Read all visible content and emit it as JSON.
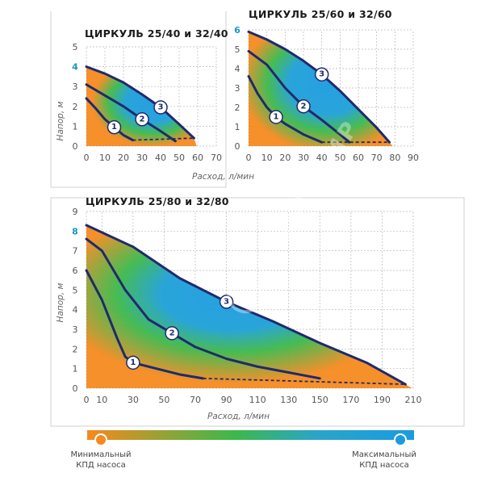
{
  "chart_data": [
    {
      "type": "line",
      "title": "ЦИРКУЛЬ 25/40 и 32/40",
      "xlabel": "Расход, л/мин",
      "ylabel": "Напор, м",
      "xlim": [
        0,
        70
      ],
      "ylim": [
        0,
        5
      ],
      "x_ticks": [
        "0",
        "10",
        "20",
        "30",
        "40",
        "50",
        "60",
        "70"
      ],
      "y_ticks": [
        "0",
        "1",
        "2",
        "3",
        "4",
        "5"
      ],
      "y_highlight": "4",
      "series": [
        {
          "name": "1",
          "x": [
            0,
            5,
            10,
            15,
            20,
            25
          ],
          "y": [
            2.4,
            1.9,
            1.35,
            0.95,
            0.55,
            0.3
          ]
        },
        {
          "name": "2",
          "x": [
            0,
            10,
            20,
            30,
            40,
            48
          ],
          "y": [
            3.1,
            2.55,
            2.0,
            1.35,
            0.75,
            0.25
          ]
        },
        {
          "name": "3",
          "x": [
            0,
            10,
            20,
            30,
            40,
            50,
            58
          ],
          "y": [
            4.0,
            3.65,
            3.2,
            2.6,
            1.95,
            1.1,
            0.4
          ]
        }
      ],
      "badges": [
        "1",
        "2",
        "3"
      ]
    },
    {
      "type": "line",
      "title": "ЦИРКУЛЬ 25/60 и 32/60",
      "xlabel": "",
      "ylabel": "",
      "xlim": [
        0,
        90
      ],
      "ylim": [
        0,
        6
      ],
      "x_ticks": [
        "0",
        "10",
        "20",
        "30",
        "40",
        "50",
        "60",
        "70",
        "80",
        "90"
      ],
      "y_ticks": [
        "0",
        "1",
        "2",
        "3",
        "4",
        "5",
        "6"
      ],
      "y_highlight": "6",
      "series": [
        {
          "name": "1",
          "x": [
            0,
            5,
            10,
            15,
            20,
            30,
            40
          ],
          "y": [
            3.6,
            2.7,
            2.0,
            1.5,
            1.15,
            0.6,
            0.2
          ]
        },
        {
          "name": "2",
          "x": [
            0,
            10,
            20,
            30,
            40,
            50,
            55
          ],
          "y": [
            4.9,
            4.2,
            3.0,
            2.05,
            1.35,
            0.6,
            0.2
          ]
        },
        {
          "name": "3",
          "x": [
            0,
            10,
            20,
            30,
            40,
            50,
            60,
            70,
            77
          ],
          "y": [
            5.9,
            5.5,
            5.0,
            4.4,
            3.7,
            2.85,
            1.9,
            0.95,
            0.2
          ]
        }
      ],
      "badges": [
        "1",
        "2",
        "3"
      ]
    },
    {
      "type": "line",
      "title": "ЦИРКУЛЬ 25/80 и 32/80",
      "xlabel": "Расход, л/мин",
      "ylabel": "Напор, м",
      "xlim": [
        0,
        210
      ],
      "ylim": [
        0,
        9
      ],
      "x_ticks": [
        "0",
        "10",
        "30",
        "50",
        "70",
        "90",
        "110",
        "130",
        "150",
        "170",
        "190",
        "210"
      ],
      "y_ticks": [
        "0",
        "1",
        "2",
        "3",
        "4",
        "5",
        "6",
        "7",
        "8",
        "9"
      ],
      "y_highlight": "8",
      "series": [
        {
          "name": "1",
          "x": [
            0,
            10,
            20,
            25,
            30,
            45,
            60,
            75
          ],
          "y": [
            6.0,
            4.5,
            2.5,
            1.6,
            1.3,
            1.0,
            0.7,
            0.5
          ]
        },
        {
          "name": "2",
          "x": [
            0,
            10,
            25,
            40,
            55,
            70,
            90,
            110,
            130,
            150
          ],
          "y": [
            7.6,
            7.0,
            5.0,
            3.5,
            2.8,
            2.1,
            1.5,
            1.1,
            0.8,
            0.5
          ]
        },
        {
          "name": "3",
          "x": [
            0,
            30,
            60,
            90,
            120,
            150,
            180,
            205
          ],
          "y": [
            8.3,
            7.2,
            5.6,
            4.4,
            3.4,
            2.3,
            1.3,
            0.2
          ]
        }
      ],
      "badges": [
        "1",
        "2",
        "3"
      ]
    }
  ],
  "legend": {
    "min_label_line1": "Минимальный",
    "min_label_line2": "КПД насоса",
    "max_label_line1": "Максимальный",
    "max_label_line2": "КПД насоса",
    "min_color": "#f58a1f",
    "mid_color": "#3db84a",
    "max_color": "#1a9be0"
  },
  "watermark": "UNIPUMP"
}
